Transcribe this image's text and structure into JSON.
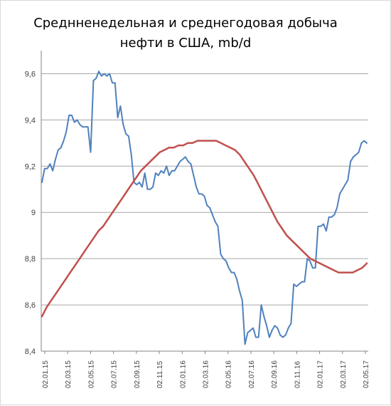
{
  "chart_data": {
    "type": "line",
    "title_lines": [
      "Среднненедельная и среднегодовая  добыча",
      "нефти в США, mb/d"
    ],
    "xlabel": "",
    "ylabel": "",
    "ylim": [
      8.4,
      9.7
    ],
    "y_ticks": [
      "9,6",
      "9,4",
      "9,2",
      "9",
      "8,8",
      "8,6",
      "8,4"
    ],
    "y_tick_values": [
      9.6,
      9.4,
      9.2,
      9.0,
      8.8,
      8.6,
      8.4
    ],
    "x_tick_labels": [
      "02.01.15",
      "02.03.15",
      "02.05.15",
      "02.07.15",
      "02.09.15",
      "02.11.15",
      "02.01.16",
      "02.03.16",
      "02.05.16",
      "02.07.16",
      "02.09.16",
      "02.11.16",
      "02.01.17",
      "02.03.17",
      "02.05.17"
    ],
    "grid": "horizontal",
    "legend": "none",
    "series": [
      {
        "color": "#4f81bd",
        "values": [
          9.13,
          9.19,
          9.19,
          9.21,
          9.18,
          9.23,
          9.27,
          9.28,
          9.31,
          9.35,
          9.42,
          9.42,
          9.39,
          9.4,
          9.38,
          9.37,
          9.37,
          9.37,
          9.26,
          9.57,
          9.58,
          9.61,
          9.59,
          9.6,
          9.59,
          9.6,
          9.56,
          9.56,
          9.41,
          9.46,
          9.38,
          9.34,
          9.33,
          9.25,
          9.13,
          9.12,
          9.13,
          9.11,
          9.17,
          9.1,
          9.1,
          9.11,
          9.17,
          9.16,
          9.18,
          9.17,
          9.2,
          9.16,
          9.18,
          9.18,
          9.2,
          9.22,
          9.23,
          9.24,
          9.22,
          9.21,
          9.16,
          9.11,
          9.08,
          9.08,
          9.07,
          9.03,
          9.02,
          8.99,
          8.96,
          8.94,
          8.82,
          8.8,
          8.79,
          8.76,
          8.74,
          8.74,
          8.71,
          8.66,
          8.62,
          8.43,
          8.48,
          8.49,
          8.5,
          8.46,
          8.46,
          8.6,
          8.55,
          8.51,
          8.46,
          8.49,
          8.51,
          8.5,
          8.47,
          8.46,
          8.47,
          8.5,
          8.52,
          8.69,
          8.68,
          8.69,
          8.7,
          8.7,
          8.8,
          8.79,
          8.76,
          8.76,
          8.94,
          8.94,
          8.95,
          8.92,
          8.98,
          8.98,
          8.99,
          9.02,
          9.08,
          9.1,
          9.12,
          9.14,
          9.22,
          9.24,
          9.25,
          9.26,
          9.3,
          9.31,
          9.3
        ]
      },
      {
        "color": "#c0504d",
        "values": [
          8.55,
          8.59,
          8.62,
          8.65,
          8.68,
          8.71,
          8.74,
          8.77,
          8.8,
          8.83,
          8.86,
          8.89,
          8.92,
          8.94,
          8.97,
          9.0,
          9.03,
          9.06,
          9.09,
          9.12,
          9.15,
          9.18,
          9.2,
          9.22,
          9.24,
          9.26,
          9.27,
          9.28,
          9.28,
          9.29,
          9.29,
          9.3,
          9.3,
          9.31,
          9.31,
          9.31,
          9.31,
          9.31,
          9.3,
          9.29,
          9.28,
          9.27,
          9.25,
          9.22,
          9.19,
          9.16,
          9.12,
          9.08,
          9.04,
          9.0,
          8.96,
          8.93,
          8.9,
          8.88,
          8.86,
          8.84,
          8.82,
          8.8,
          8.79,
          8.78,
          8.77,
          8.76,
          8.75,
          8.74,
          8.74,
          8.74,
          8.74,
          8.75,
          8.76,
          8.78
        ]
      }
    ]
  }
}
